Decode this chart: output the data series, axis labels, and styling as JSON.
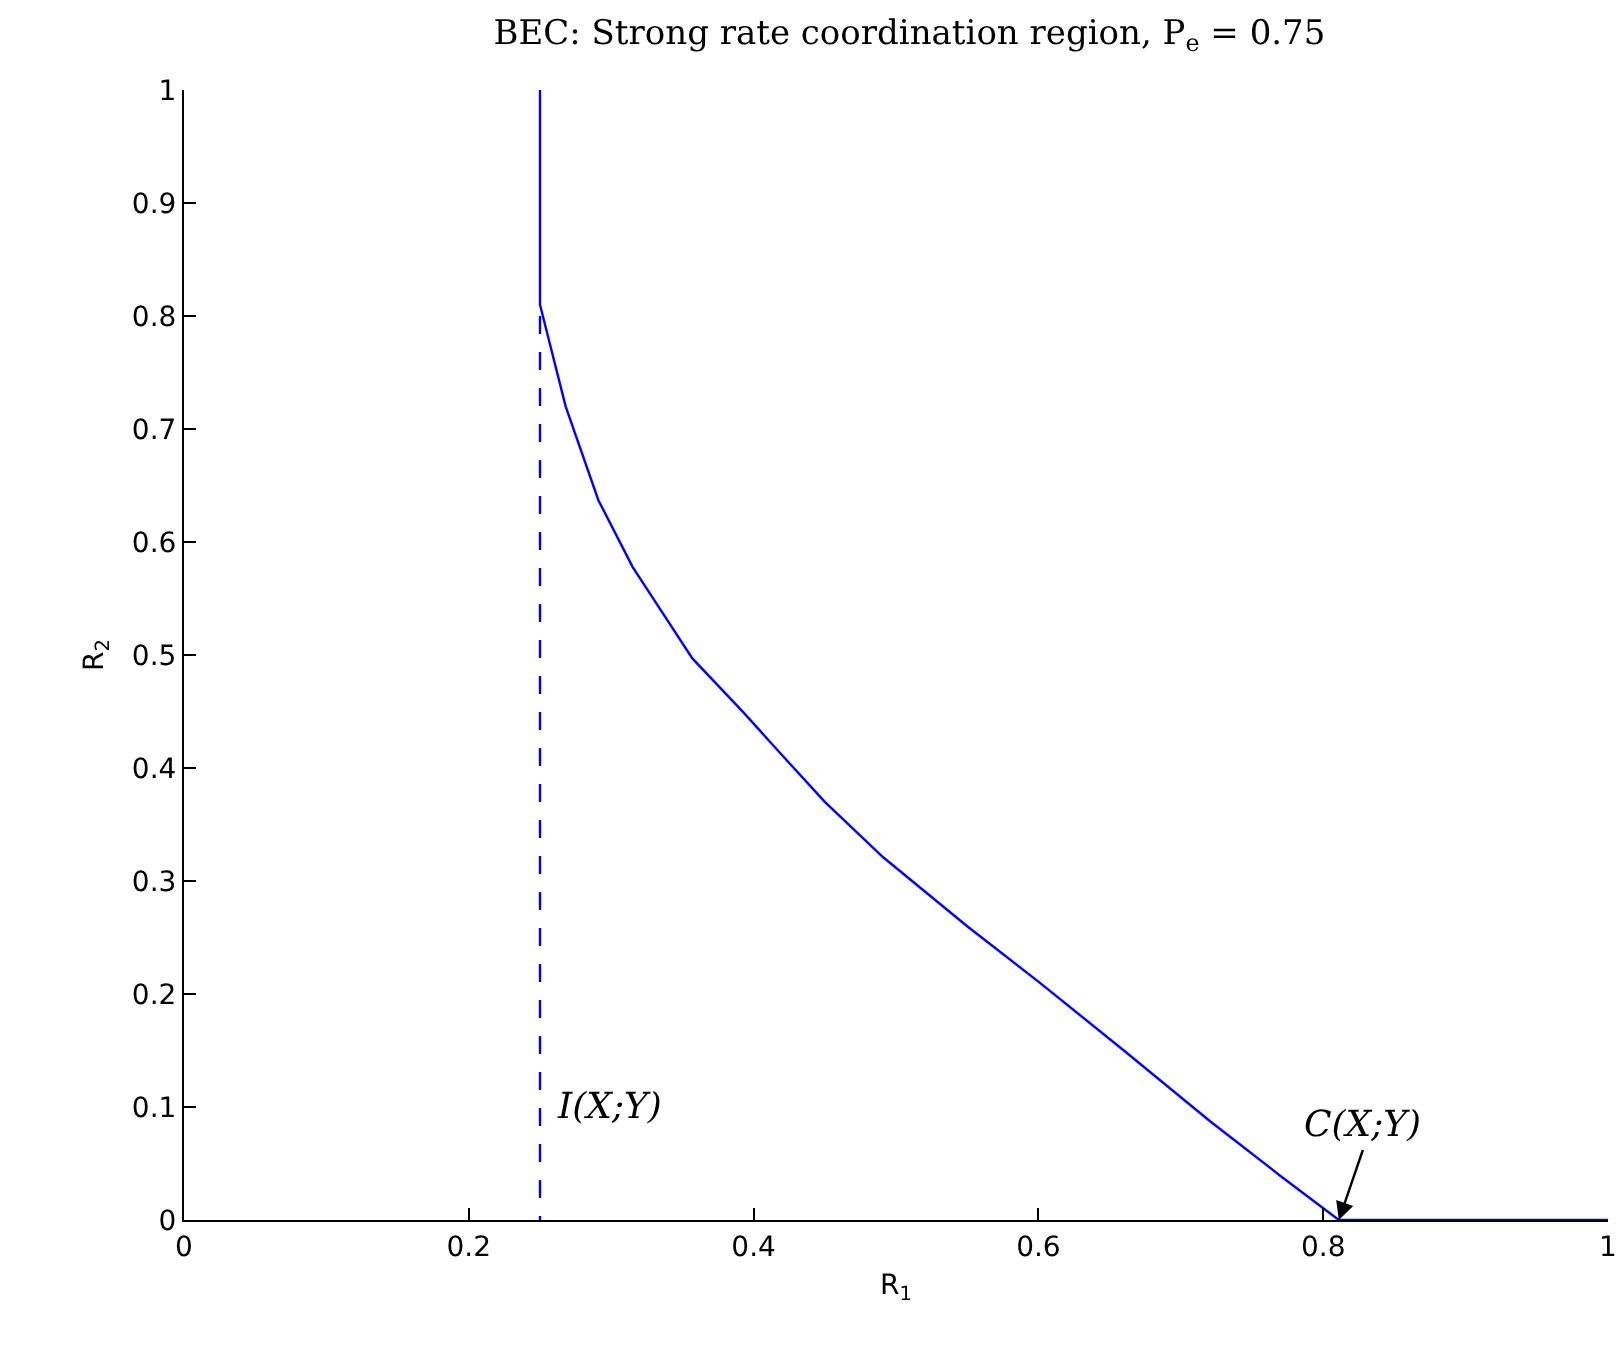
{
  "chart_data": {
    "type": "line",
    "title": "BEC: Strong rate coordination region, P$_{e}$ = 0.75",
    "xlabel": "R$_{1}$",
    "ylabel": "R$_{2}$",
    "series": [
      {
        "color": "#0000ff",
        "line_style": "solid",
        "x": [
          0.25,
          0.25,
          0.268,
          0.291,
          0.315,
          0.33,
          0.357,
          0.393,
          0.421,
          0.45,
          0.491,
          0.55,
          0.6,
          0.66,
          0.721,
          0.77,
          0.811,
          1
        ],
        "values": [
          1,
          0.81,
          0.72,
          0.637,
          0.578,
          0.549,
          0.497,
          0.449,
          0.41,
          0.37,
          0.321,
          0.26,
          0.211,
          0.15,
          0.087,
          0.039,
          0,
          0
        ]
      },
      {
        "color": "#0000ff",
        "line_style": "dashed",
        "x": [
          0.25,
          0.25
        ],
        "values": [
          0.8,
          0
        ]
      }
    ],
    "annotations": [
      {
        "text": "I(X;Y)",
        "x": 0.25,
        "y": 0.1
      },
      {
        "text": "C(X;Y)",
        "x": 0.811,
        "y": 0
      }
    ],
    "xlim": [
      0,
      1
    ],
    "ylim": [
      0,
      1
    ],
    "xticks": [
      0,
      0.2,
      0.4,
      0.6,
      0.8,
      1
    ],
    "yticks": [
      0,
      0.1,
      0.2,
      0.3,
      0.4,
      0.5,
      0.6,
      0.7,
      0.8,
      0.9,
      1
    ],
    "grid": false,
    "marker": "none"
  }
}
